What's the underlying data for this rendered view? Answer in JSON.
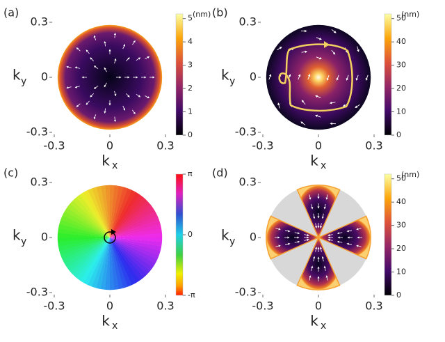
{
  "chart_data": [
    {
      "type": "heatmap",
      "panel_label": "(a)",
      "xlabel": "k",
      "xlabel_subscript": "x",
      "ylabel": "k",
      "ylabel_subscript": "y",
      "xlim": [
        -0.3,
        0.3
      ],
      "ylim": [
        -0.3,
        0.3
      ],
      "xticks": [
        -0.3,
        0,
        0.3
      ],
      "yticks": [
        -0.3,
        0,
        0.3
      ],
      "colormap": "inferno",
      "colorbar_lim": [
        0,
        5.2
      ],
      "colorbar_ticks": [
        0,
        1,
        2,
        3,
        4,
        5
      ],
      "colorbar_unit": "(nm)"
    },
    {
      "type": "heatmap",
      "panel_label": "(b)",
      "xlabel": "k",
      "xlabel_subscript": "x",
      "ylabel": "k",
      "ylabel_subscript": "y",
      "xlim": [
        -0.3,
        0.3
      ],
      "ylim": [
        -0.3,
        0.3
      ],
      "xticks": [
        -0.3,
        0,
        0.3
      ],
      "yticks": [
        -0.3,
        0,
        0.3
      ],
      "colormap": "inferno",
      "colorbar_lim": [
        0,
        52
      ],
      "colorbar_ticks": [
        0,
        10,
        20,
        30,
        40,
        50
      ],
      "colorbar_unit": "(nm)"
    },
    {
      "type": "heatmap",
      "panel_label": "(c)",
      "xlabel": "k",
      "xlabel_subscript": "x",
      "ylabel": "k",
      "ylabel_subscript": "y",
      "xlim": [
        -0.3,
        0.3
      ],
      "ylim": [
        -0.3,
        0.3
      ],
      "xticks": [
        -0.3,
        0,
        0.3
      ],
      "yticks": [
        -0.3,
        0,
        0.3
      ],
      "colormap": "hsv",
      "colorbar_lim": [
        -3.1416,
        3.1416
      ],
      "colorbar_ticks": [
        {
          "value": -3.1416,
          "label": "-π"
        },
        0,
        {
          "value": 3.1416,
          "label": "π"
        }
      ]
    },
    {
      "type": "heatmap",
      "panel_label": "(d)",
      "xlabel": "k",
      "xlabel_subscript": "x",
      "ylabel": "k",
      "ylabel_subscript": "y",
      "xlim": [
        -0.3,
        0.3
      ],
      "ylim": [
        -0.3,
        0.3
      ],
      "xticks": [
        -0.3,
        0,
        0.3
      ],
      "yticks": [
        -0.3,
        0,
        0.3
      ],
      "colormap": "inferno",
      "colorbar_lim": [
        0,
        52
      ],
      "colorbar_ticks": [
        0,
        10,
        20,
        30,
        40,
        50
      ],
      "colorbar_unit": "(nm)"
    }
  ]
}
